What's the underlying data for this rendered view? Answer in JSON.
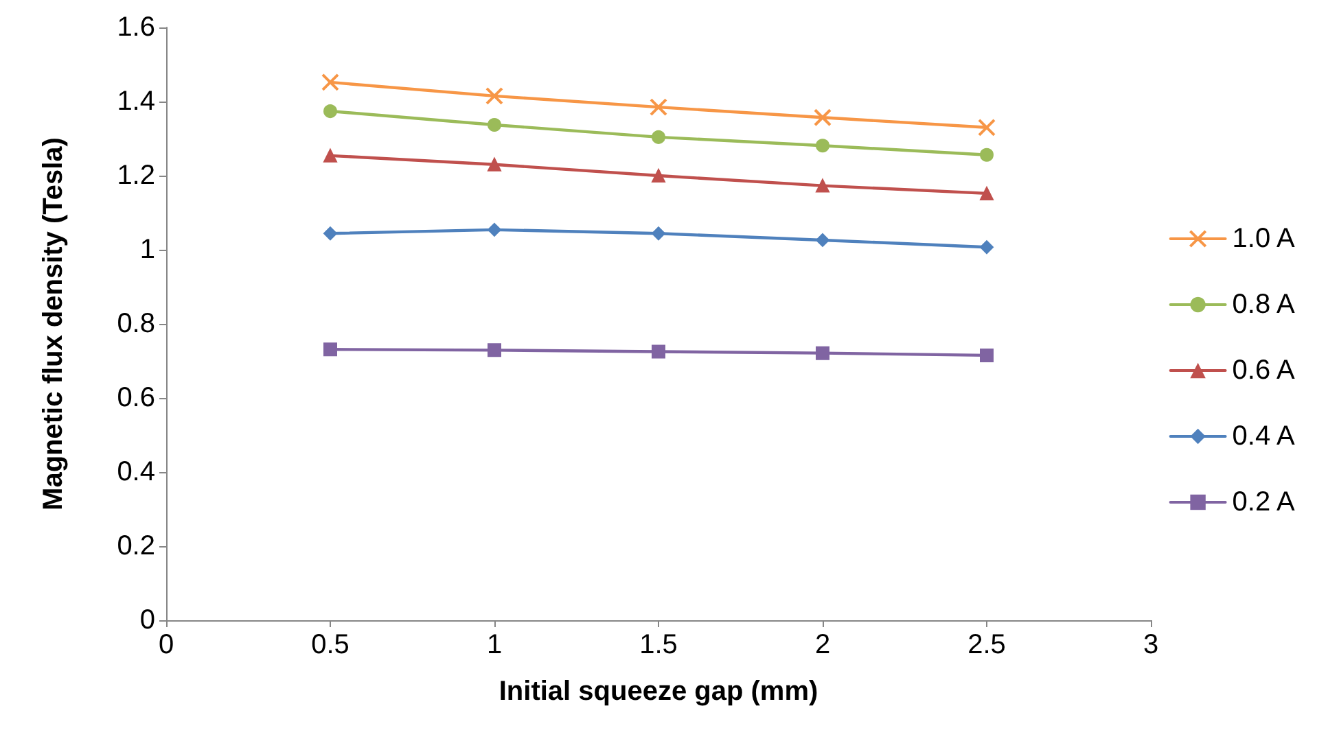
{
  "chart_data": {
    "type": "line",
    "xlabel": "Initial squeeze gap (mm)",
    "ylabel": "Magnetic flux density (Tesla)",
    "x": [
      0.5,
      1,
      1.5,
      2,
      2.5
    ],
    "xlim": [
      0,
      3
    ],
    "xticks": [
      0,
      0.5,
      1,
      1.5,
      2,
      2.5,
      3
    ],
    "ylim": [
      0,
      1.6
    ],
    "yticks": [
      0,
      0.2,
      0.4,
      0.6,
      0.8,
      1,
      1.2,
      1.4,
      1.6
    ],
    "grid": false,
    "legend": "right",
    "series": [
      {
        "name": "1.0 A",
        "color": "#f79646",
        "marker": "cross",
        "values": [
          1.452,
          1.415,
          1.385,
          1.357,
          1.33
        ]
      },
      {
        "name": "0.8 A",
        "color": "#9bbb59",
        "marker": "circle",
        "values": [
          1.374,
          1.337,
          1.304,
          1.281,
          1.256
        ]
      },
      {
        "name": "0.6 A",
        "color": "#c0504d",
        "marker": "triangle",
        "values": [
          1.254,
          1.23,
          1.2,
          1.173,
          1.152
        ]
      },
      {
        "name": "0.4 A",
        "color": "#4f81bd",
        "marker": "diamond",
        "values": [
          1.044,
          1.054,
          1.044,
          1.026,
          1.007
        ]
      },
      {
        "name": "0.2 A",
        "color": "#8064a2",
        "marker": "square",
        "values": [
          0.731,
          0.729,
          0.725,
          0.721,
          0.715
        ]
      }
    ]
  }
}
